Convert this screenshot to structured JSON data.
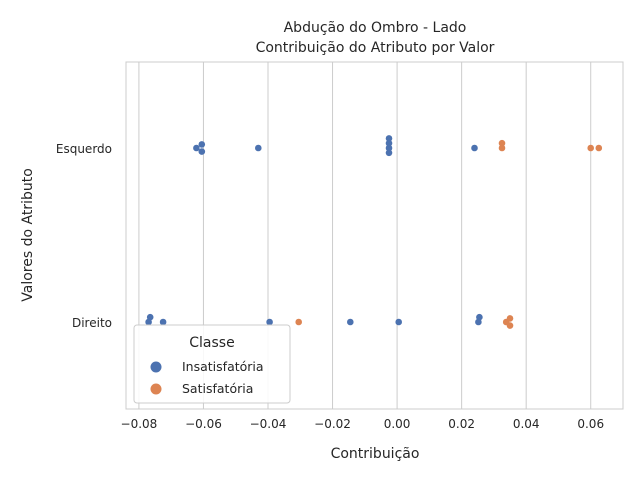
{
  "chart_data": {
    "type": "scatter",
    "title_lines": [
      "Abdução do Ombro - Lado",
      "Contribuição do Atributo por Valor"
    ],
    "xlabel": "Contribuição",
    "ylabel": "Valores do Atributo",
    "xlim": [
      -0.084,
      0.07
    ],
    "xticks": [
      -0.08,
      -0.06,
      -0.04,
      -0.02,
      0.0,
      0.02,
      0.04,
      0.06
    ],
    "xtick_labels": [
      "−0.08",
      "−0.06",
      "−0.04",
      "−0.02",
      "0.00",
      "0.02",
      "0.04",
      "0.06"
    ],
    "categories": [
      "Esquerdo",
      "Direito"
    ],
    "grid": true,
    "legend": {
      "title": "Classe",
      "placement": "lower-left",
      "entries": [
        {
          "name": "Insatisfatória",
          "color": "#4c72b0"
        },
        {
          "name": "Satisfatória",
          "color": "#dd8452"
        }
      ]
    },
    "series": [
      {
        "name": "Insatisfatória",
        "color": "#4c72b0",
        "points": [
          {
            "category": "Esquerdo",
            "x": -0.0605,
            "offset": -0.03
          },
          {
            "category": "Esquerdo",
            "x": -0.0622,
            "offset": 0.0
          },
          {
            "category": "Esquerdo",
            "x": -0.0605,
            "offset": 0.03
          },
          {
            "category": "Esquerdo",
            "x": -0.043,
            "offset": 0.0
          },
          {
            "category": "Esquerdo",
            "x": -0.0025,
            "offset": -0.08
          },
          {
            "category": "Esquerdo",
            "x": -0.0025,
            "offset": -0.04
          },
          {
            "category": "Esquerdo",
            "x": -0.0025,
            "offset": 0.0
          },
          {
            "category": "Esquerdo",
            "x": -0.0025,
            "offset": 0.04
          },
          {
            "category": "Esquerdo",
            "x": 0.024,
            "offset": 0.0
          },
          {
            "category": "Direito",
            "x": -0.0765,
            "offset": -0.04
          },
          {
            "category": "Direito",
            "x": -0.077,
            "offset": 0.0
          },
          {
            "category": "Direito",
            "x": -0.0725,
            "offset": 0.0
          },
          {
            "category": "Direito",
            "x": -0.0395,
            "offset": 0.0
          },
          {
            "category": "Direito",
            "x": -0.0145,
            "offset": 0.0
          },
          {
            "category": "Direito",
            "x": 0.0005,
            "offset": 0.0
          },
          {
            "category": "Direito",
            "x": 0.0255,
            "offset": -0.04
          },
          {
            "category": "Direito",
            "x": 0.0252,
            "offset": 0.0
          }
        ]
      },
      {
        "name": "Satisfatória",
        "color": "#dd8452",
        "points": [
          {
            "category": "Esquerdo",
            "x": 0.0325,
            "offset": -0.04
          },
          {
            "category": "Esquerdo",
            "x": 0.0325,
            "offset": 0.0
          },
          {
            "category": "Esquerdo",
            "x": 0.06,
            "offset": 0.0
          },
          {
            "category": "Esquerdo",
            "x": 0.0625,
            "offset": 0.0
          },
          {
            "category": "Direito",
            "x": -0.0305,
            "offset": 0.0
          },
          {
            "category": "Direito",
            "x": 0.035,
            "offset": -0.03
          },
          {
            "category": "Direito",
            "x": 0.0338,
            "offset": 0.0
          },
          {
            "category": "Direito",
            "x": 0.035,
            "offset": 0.03
          }
        ]
      }
    ]
  }
}
